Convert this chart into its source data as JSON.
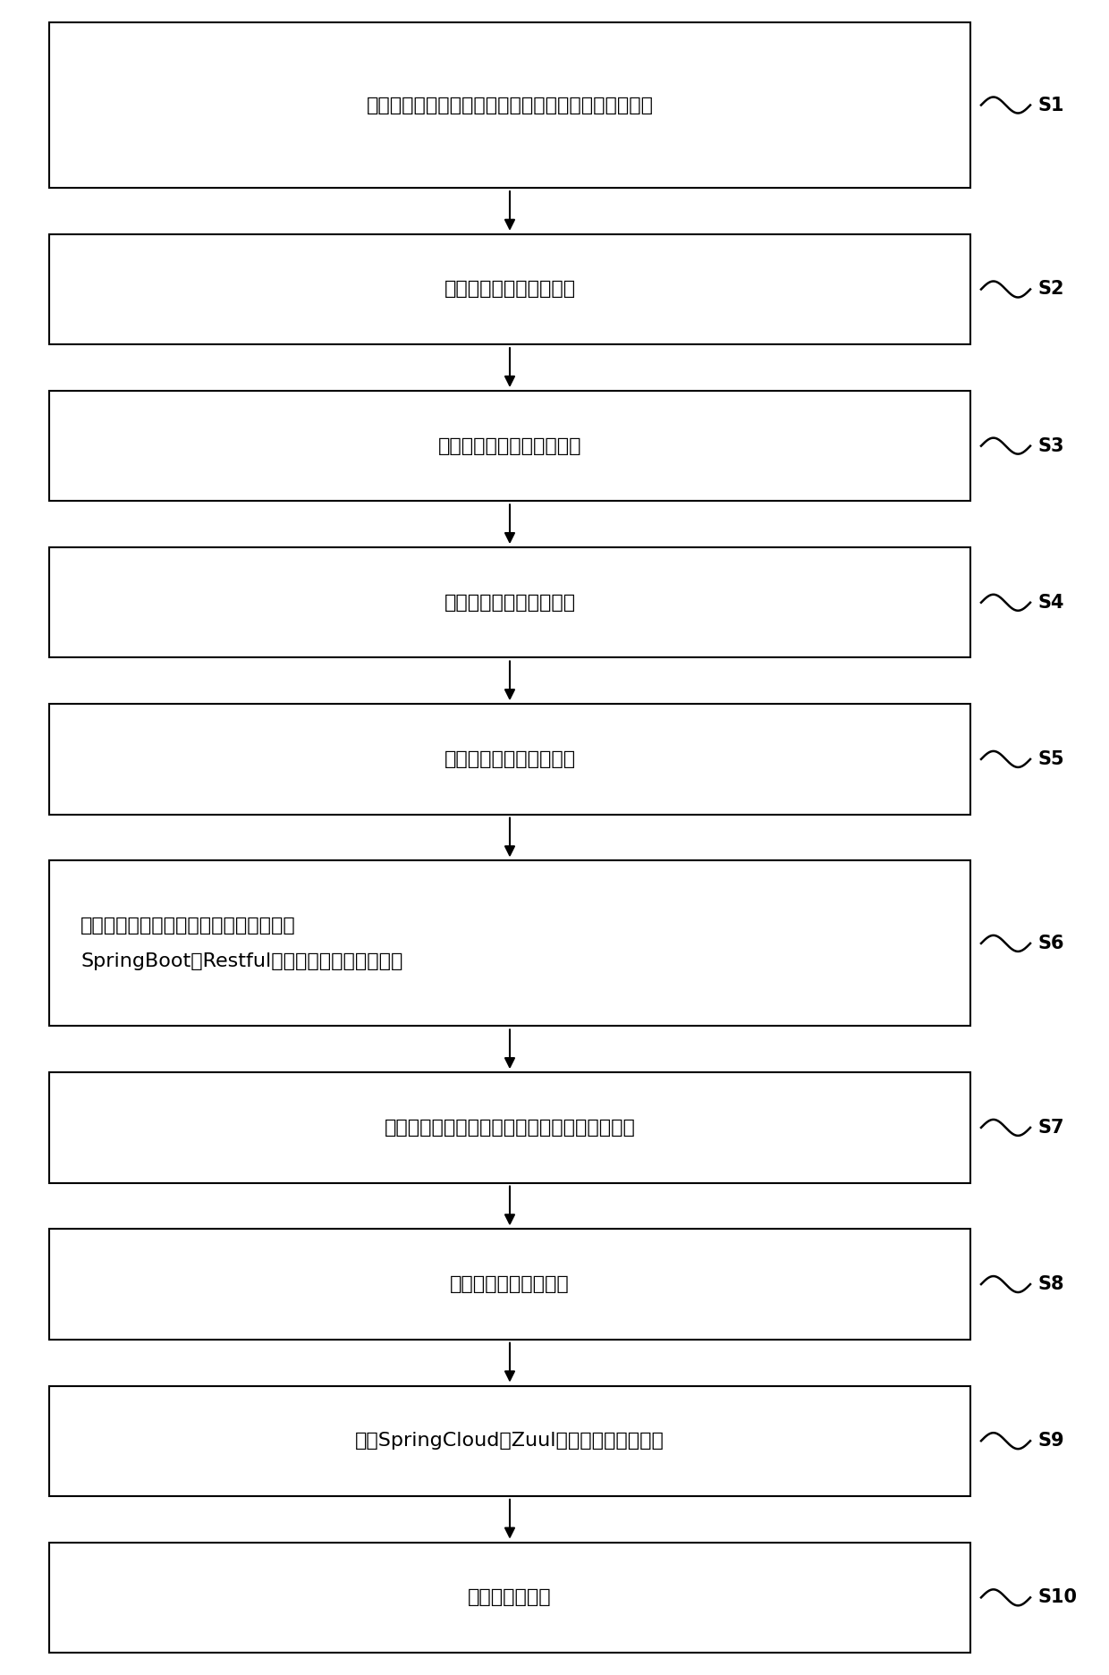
{
  "steps": [
    {
      "label": "将地图内容进行切片，生产配置信息文件，并将其保持",
      "step": "S1",
      "multiline": false,
      "tall": true,
      "line1": "",
      "line2": ""
    },
    {
      "label": "配置切片服务的基本信息",
      "step": "S2",
      "multiline": false,
      "tall": false,
      "line1": "",
      "line2": ""
    },
    {
      "label": "配置切片服务的坐标参考系",
      "step": "S3",
      "multiline": false,
      "tall": false,
      "line1": "",
      "line2": ""
    },
    {
      "label": "配置切片服务的前缀信息",
      "step": "S4",
      "multiline": false,
      "tall": false,
      "line1": "",
      "line2": ""
    },
    {
      "label": "配置切片服务的后缀信息",
      "step": "S5",
      "multiline": false,
      "tall": false,
      "line1": "",
      "line2": ""
    },
    {
      "label": "将所有切片服务信息保存完毕后通过基于",
      "step": "S6",
      "multiline": true,
      "tall": true,
      "line1": "将所有切片服务信息保存完毕后通过基于",
      "line2": "SpringBoot的Restful服务发布成切片地图服务"
    },
    {
      "label": "将切片地图服务信息分发到网关，配置服务信息",
      "step": "S7",
      "multiline": false,
      "tall": false,
      "line1": "",
      "line2": ""
    },
    {
      "label": "检测配置网关服务信息",
      "step": "S8",
      "multiline": false,
      "tall": false,
      "line1": "",
      "line2": ""
    },
    {
      "label": "通过SpringCloud的Zuul组件将服务发布完毕",
      "step": "S9",
      "multiline": false,
      "tall": false,
      "line1": "",
      "line2": ""
    },
    {
      "label": "地图服务的访问",
      "step": "S10",
      "multiline": false,
      "tall": false,
      "line1": "",
      "line2": ""
    }
  ],
  "box_color": "#ffffff",
  "border_color": "#000000",
  "text_color": "#000000",
  "arrow_color": "#000000",
  "background_color": "#ffffff",
  "fig_width": 12.4,
  "fig_height": 18.73,
  "dpi": 100
}
